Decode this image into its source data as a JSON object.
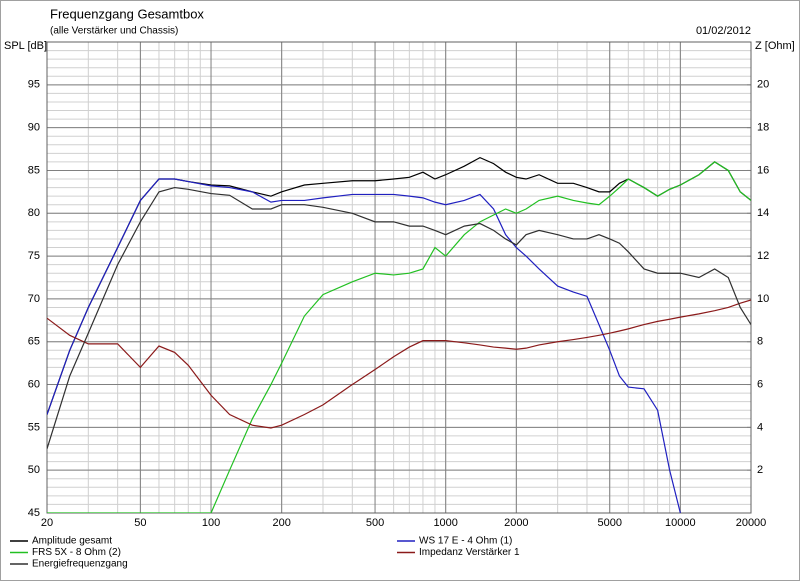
{
  "chart_data": {
    "type": "line",
    "title": "Frequenzgang Gesamtbox",
    "subtitle": "(alle Verstärker und Chassis)",
    "date": "01/02/2012",
    "ylabel": "SPL [dB]",
    "y2label": "Z [Ohm]",
    "xscale": "log",
    "grid": true,
    "x": [
      20,
      25,
      30,
      40,
      50,
      60,
      70,
      80,
      100,
      120,
      150,
      180,
      200,
      250,
      300,
      400,
      500,
      600,
      700,
      800,
      900,
      1000,
      1200,
      1400,
      1600,
      1800,
      2000,
      2200,
      2500,
      3000,
      3500,
      4000,
      4500,
      5000,
      5500,
      6000,
      7000,
      8000,
      9000,
      10000,
      12000,
      14000,
      16000,
      18000,
      20000
    ],
    "xlim": [
      20,
      20000
    ],
    "xticks": [
      20,
      50,
      100,
      200,
      500,
      1000,
      2000,
      5000,
      10000,
      20000
    ],
    "ylim": [
      45,
      100
    ],
    "yticks": [
      45,
      50,
      55,
      60,
      65,
      70,
      75,
      80,
      85,
      90,
      95
    ],
    "y2lim": [
      0,
      22
    ],
    "y2ticks": [
      2,
      4,
      6,
      8,
      10,
      12,
      14,
      16,
      18,
      20
    ],
    "series": [
      {
        "name": "Amplitude gesamt",
        "color": "#000000",
        "values": [
          56.5,
          64,
          69,
          76,
          81.5,
          84,
          84,
          83.7,
          83.3,
          83.2,
          82.5,
          82,
          82.5,
          83.3,
          83.5,
          83.8,
          83.8,
          84,
          84.2,
          84.8,
          84,
          84.5,
          85.5,
          86.5,
          85.8,
          84.8,
          84.2,
          84,
          84.5,
          83.5,
          83.5,
          83,
          82.5,
          82.5,
          83.5,
          84,
          83,
          82,
          82.8,
          83.3,
          84.5,
          86,
          85,
          82.5,
          81.5
        ]
      },
      {
        "name": "WS 17 E - 4 Ohm  (1)",
        "color": "#2020c0",
        "values": [
          56.5,
          64,
          69,
          76,
          81.5,
          84,
          84,
          83.7,
          83.2,
          83,
          82.5,
          81.3,
          81.5,
          81.5,
          81.8,
          82.2,
          82.2,
          82.2,
          82,
          81.8,
          81.3,
          81,
          81.5,
          82.2,
          80.5,
          77.5,
          76,
          75,
          73.5,
          71.5,
          70.8,
          70.3,
          67,
          64,
          61,
          59.7,
          59.5,
          57,
          50,
          45,
          null,
          null,
          null,
          null,
          null
        ]
      },
      {
        "name": "FRS 5X - 8 Ohm (2)",
        "color": "#22c022",
        "values": [
          45,
          45,
          45,
          45,
          45,
          45,
          45,
          45,
          45,
          50,
          56,
          60,
          62.5,
          68,
          70.5,
          72,
          73,
          72.8,
          73,
          73.5,
          76,
          75,
          77.5,
          79,
          79.8,
          80.5,
          80,
          80.5,
          81.5,
          82,
          81.5,
          81.2,
          81,
          82,
          83,
          84,
          83,
          82,
          82.8,
          83.3,
          84.5,
          86,
          85,
          82.5,
          81.5
        ]
      },
      {
        "name": "Impedanz Verstärker 1",
        "color": "#8b1a1a",
        "axis": "y2",
        "values": [
          9.1,
          8.3,
          7.9,
          7.9,
          6.8,
          7.8,
          7.5,
          6.9,
          5.5,
          4.6,
          4.1,
          3.97,
          4.1,
          4.6,
          5.05,
          6.0,
          6.7,
          7.3,
          7.75,
          8.05,
          8.05,
          8.05,
          7.95,
          7.85,
          7.75,
          7.7,
          7.65,
          7.7,
          7.85,
          8.0,
          8.1,
          8.2,
          8.3,
          8.4,
          8.5,
          8.6,
          8.8,
          8.95,
          9.05,
          9.15,
          9.3,
          9.45,
          9.6,
          9.8,
          9.95
        ]
      },
      {
        "name": "Energiefrequenzgang",
        "color": "#303030",
        "values": [
          52.5,
          61,
          66,
          74,
          79,
          82.5,
          83,
          82.8,
          82.3,
          82.1,
          80.5,
          80.5,
          81,
          81,
          80.7,
          80,
          79,
          79,
          78.5,
          78.5,
          78,
          77.5,
          78.5,
          78.8,
          78,
          77,
          76.3,
          77.5,
          78,
          77.5,
          77,
          77,
          77.5,
          77,
          76.5,
          75.5,
          73.5,
          73,
          73,
          73,
          72.5,
          73.5,
          72.5,
          69,
          67
        ]
      }
    ]
  }
}
